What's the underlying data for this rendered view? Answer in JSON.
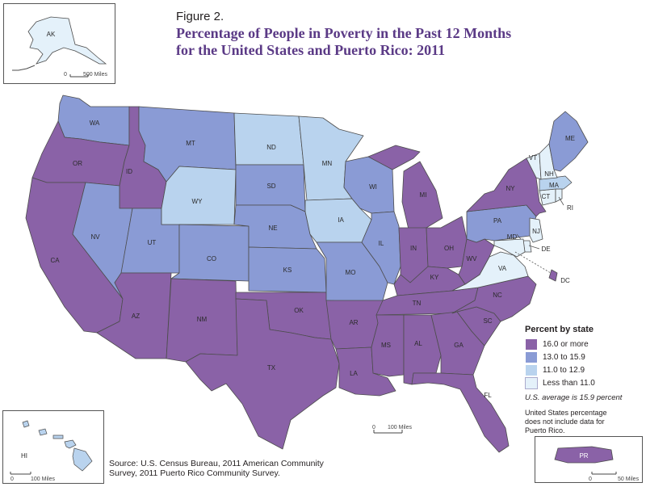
{
  "header": {
    "figure_label": "Figure 2.",
    "title_line1": "Percentage of People in Poverty in the Past 12 Months",
    "title_line2": "for the United States and Puerto Rico: 2011"
  },
  "colors": {
    "c16": "#8a62a7",
    "c13": "#8a9bd5",
    "c11": "#b9d3ee",
    "c0": "#e4f1fa",
    "border": "#4d4d4d"
  },
  "legend": {
    "title": "Percent by state",
    "items": [
      {
        "label": "16.0 or more",
        "color": "#8a62a7"
      },
      {
        "label": "13.0 to 15.9",
        "color": "#8a9bd5"
      },
      {
        "label": "11.0 to 12.9",
        "color": "#b9d3ee"
      },
      {
        "label": "Less than 11.0",
        "color": "#e4f1fa"
      }
    ],
    "us_average": "U.S. average is 15.9 percent",
    "note": "United States percentage does not include data for Puerto Rico."
  },
  "scales": {
    "ak": "500 Miles",
    "main": "100 Miles",
    "hi": "100 Miles",
    "pr": "50 Miles",
    "zero": "0"
  },
  "insets": {
    "ak": "AK",
    "hi": "HI",
    "pr": "PR"
  },
  "states": {
    "WA": "WA",
    "OR": "OR",
    "CA": "CA",
    "ID": "ID",
    "NV": "NV",
    "UT": "UT",
    "AZ": "AZ",
    "MT": "MT",
    "WY": "WY",
    "CO": "CO",
    "NM": "NM",
    "ND": "ND",
    "SD": "SD",
    "NE": "NE",
    "KS": "KS",
    "OK": "OK",
    "TX": "TX",
    "MN": "MN",
    "IA": "IA",
    "MO": "MO",
    "AR": "AR",
    "LA": "LA",
    "WI": "WI",
    "IL": "IL",
    "MI": "MI",
    "IN": "IN",
    "OH": "OH",
    "KY": "KY",
    "TN": "TN",
    "MS": "MS",
    "AL": "AL",
    "GA": "GA",
    "FL": "FL",
    "SC": "SC",
    "NC": "NC",
    "VA": "VA",
    "WV": "WV",
    "PA": "PA",
    "NY": "NY",
    "ME": "ME",
    "VT": "VT",
    "NH": "NH",
    "MA": "MA",
    "CT": "CT",
    "RI": "RI",
    "NJ": "NJ",
    "DE": "DE",
    "MD": "MD",
    "DC": "DC"
  },
  "source": {
    "line1": "Source: U.S. Census Bureau, 2011 American Community",
    "line2": "Survey, 2011 Puerto Rico Community Survey."
  }
}
